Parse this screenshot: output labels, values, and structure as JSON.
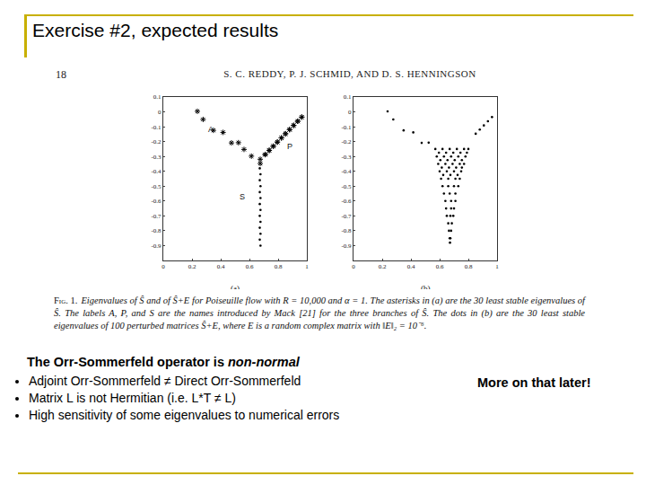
{
  "slide": {
    "title": "Exercise #2, expected results",
    "heading": {
      "text": "The Orr-Sommerfeld operator is",
      "emphasis": "non-normal"
    },
    "bullets": [
      "Adjoint Orr-Sommerfeld ≠ Direct Orr-Sommerfeld",
      "Matrix L is not Hermitian (i.e. L*T ≠ L)",
      "High sensitivity of some eigenvalues to numerical errors"
    ],
    "side_note": "More on that later!"
  },
  "paper": {
    "page": "18",
    "authors": "S. C. REDDY, P. J. SCHMID, AND D. S. HENNINGSON",
    "caption_label": "Fig. 1.",
    "caption": "Eigenvalues of Ŝ and of Ŝ+E for Poiseuille flow with R = 10,000 and α = 1. The asterisks in (a) are the 30 least stable eigenvalues of Ŝ. The labels A, P, and S are the names introduced by Mack [21] for the three branches of Ŝ. The dots in (b) are the 30 least stable eigenvalues of 100 perturbed matrices Ŝ+E, where E is a random complex matrix with ‖E‖₂ = 10⁻⁶."
  },
  "chart_data": [
    {
      "type": "scatter",
      "title": "(a)",
      "xlim": [
        0,
        1
      ],
      "ylim": [
        -1,
        0.1
      ],
      "xticks": [
        0,
        0.2,
        0.4,
        0.6,
        0.8,
        1
      ],
      "yticks": [
        0.1,
        0,
        -0.1,
        -0.2,
        -0.3,
        -0.4,
        -0.5,
        -0.6,
        -0.7,
        -0.8,
        -0.9
      ],
      "grid": false,
      "annotations": [
        {
          "text": "A",
          "x": 0.33,
          "y": -0.12
        },
        {
          "text": "P",
          "x": 0.88,
          "y": -0.23
        },
        {
          "text": "S",
          "x": 0.55,
          "y": -0.57
        }
      ],
      "series": [
        {
          "marker": "asterisk",
          "color": "#000000",
          "x": [
            0.2375,
            0.9646,
            0.9646,
            0.2772,
            0.9363,
            0.9364,
            0.908,
            0.9081,
            0.8796,
            0.8798,
            0.3491,
            0.4164,
            0.8512,
            0.8514,
            0.8228,
            0.8231,
            0.7944,
            0.7948,
            0.5236,
            0.4749,
            0.7659,
            0.7665,
            0.5623,
            0.7375,
            0.7383,
            0.6139,
            0.7093,
            0.7107,
            0.6753,
            0.6754
          ],
          "y": [
            0.0037,
            -0.0352,
            -0.0352,
            -0.0509,
            -0.0632,
            -0.0633,
            -0.0912,
            -0.0913,
            -0.1192,
            -0.1194,
            -0.1245,
            -0.1382,
            -0.1472,
            -0.1474,
            -0.1752,
            -0.1755,
            -0.2032,
            -0.2035,
            -0.2073,
            -0.2087,
            -0.2312,
            -0.2315,
            -0.2527,
            -0.259,
            -0.2595,
            -0.298,
            -0.2866,
            -0.288,
            -0.3188,
            -0.3477
          ]
        },
        {
          "marker": "dot",
          "color": "#000000",
          "x": [
            0.672,
            0.677,
            0.672,
            0.677,
            0.672,
            0.677,
            0.672,
            0.677,
            0.672,
            0.677,
            0.672,
            0.677,
            0.672,
            0.677
          ],
          "y": [
            -0.38,
            -0.42,
            -0.46,
            -0.5,
            -0.54,
            -0.58,
            -0.62,
            -0.66,
            -0.7,
            -0.74,
            -0.78,
            -0.82,
            -0.86,
            -0.9
          ]
        }
      ]
    },
    {
      "type": "scatter",
      "title": "(b)",
      "xlim": [
        0,
        1
      ],
      "ylim": [
        -1,
        0.1
      ],
      "xticks": [
        0,
        0.2,
        0.4,
        0.6,
        0.8,
        1
      ],
      "yticks": [
        0.1,
        0,
        -0.1,
        -0.2,
        -0.3,
        -0.4,
        -0.5,
        -0.6,
        -0.7,
        -0.8,
        -0.9
      ],
      "grid": false,
      "series": [
        {
          "marker": "dot",
          "color": "#000000",
          "x": [
            0.2375,
            0.2772,
            0.3491,
            0.4164,
            0.4749,
            0.5236,
            0.9646,
            0.9363,
            0.908,
            0.8796,
            0.8512,
            0.57,
            0.62,
            0.67,
            0.72,
            0.77,
            0.8,
            0.595,
            0.645,
            0.695,
            0.745,
            0.79,
            0.58,
            0.63,
            0.68,
            0.73,
            0.78,
            0.605,
            0.655,
            0.705,
            0.755,
            0.59,
            0.64,
            0.69,
            0.74,
            0.77,
            0.615,
            0.665,
            0.715,
            0.755,
            0.6,
            0.65,
            0.7,
            0.75,
            0.625,
            0.675,
            0.725,
            0.61,
            0.66,
            0.71,
            0.74,
            0.62,
            0.66,
            0.7,
            0.73,
            0.63,
            0.67,
            0.71,
            0.64,
            0.68,
            0.71,
            0.645,
            0.68,
            0.7,
            0.65,
            0.675,
            0.695,
            0.66,
            0.685,
            0.665,
            0.68,
            0.67,
            0.675,
            0.672
          ],
          "y": [
            0.0037,
            -0.0509,
            -0.1245,
            -0.1382,
            -0.2087,
            -0.2073,
            -0.0352,
            -0.0632,
            -0.0912,
            -0.1192,
            -0.1472,
            -0.25,
            -0.25,
            -0.25,
            -0.25,
            -0.25,
            -0.25,
            -0.275,
            -0.275,
            -0.275,
            -0.275,
            -0.275,
            -0.3,
            -0.3,
            -0.3,
            -0.3,
            -0.3,
            -0.325,
            -0.325,
            -0.325,
            -0.325,
            -0.35,
            -0.35,
            -0.35,
            -0.35,
            -0.35,
            -0.375,
            -0.375,
            -0.375,
            -0.375,
            -0.4,
            -0.4,
            -0.4,
            -0.4,
            -0.425,
            -0.425,
            -0.425,
            -0.45,
            -0.45,
            -0.45,
            -0.45,
            -0.5,
            -0.5,
            -0.5,
            -0.5,
            -0.55,
            -0.55,
            -0.55,
            -0.6,
            -0.6,
            -0.6,
            -0.65,
            -0.65,
            -0.65,
            -0.7,
            -0.7,
            -0.7,
            -0.75,
            -0.75,
            -0.8,
            -0.8,
            -0.85,
            -0.85,
            -0.88
          ]
        }
      ]
    }
  ]
}
